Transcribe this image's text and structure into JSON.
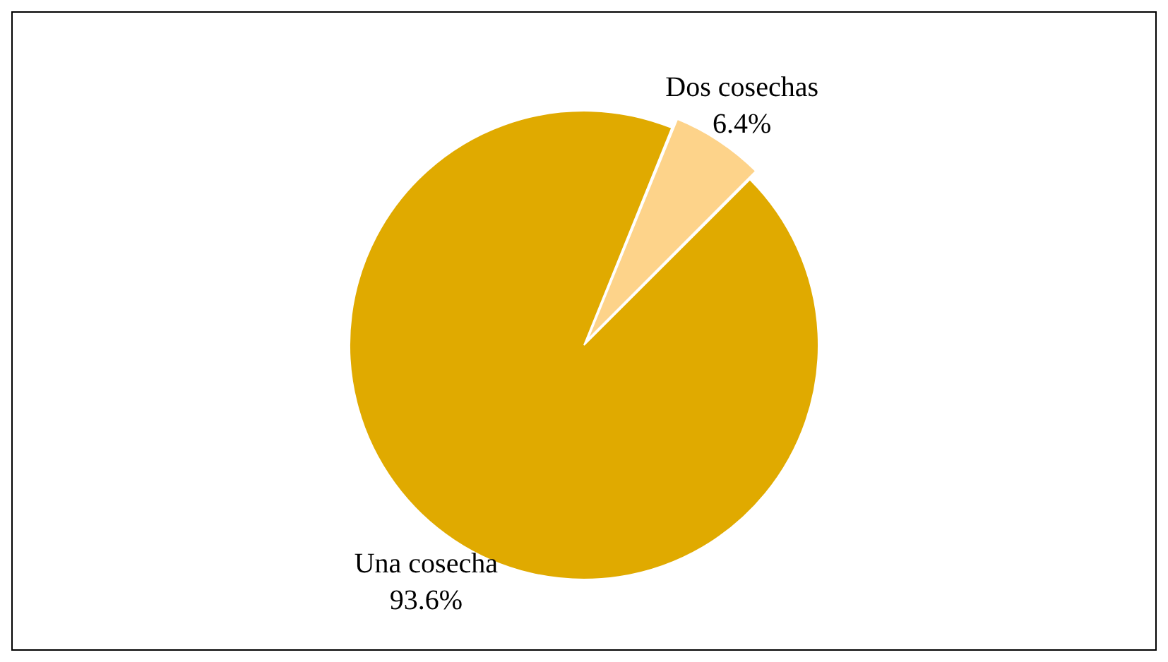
{
  "chart_data": {
    "type": "pie",
    "categories": [
      "Dos cosechas",
      "Una cosecha"
    ],
    "values": [
      6.4,
      93.6
    ],
    "colors": [
      "#fdd38a",
      "#e0aa00"
    ],
    "value_labels": [
      "6.4%",
      "93.6%"
    ],
    "legend": false
  }
}
